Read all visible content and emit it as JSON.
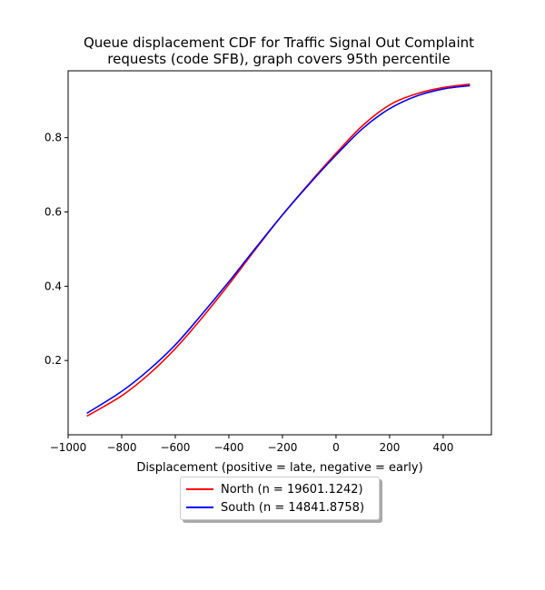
{
  "chart_data": {
    "type": "line",
    "title_line1": "Queue displacement CDF for Traffic Signal Out Complaint",
    "title_line2": "requests (code SFB), graph covers 95th percentile",
    "xlabel": "Displacement (positive = late, negative = early)",
    "ylabel": "",
    "xlim": [
      -1000,
      580
    ],
    "ylim": [
      0.0,
      0.98
    ],
    "xticks": [
      -1000,
      -800,
      -600,
      -400,
      -200,
      0,
      200,
      400
    ],
    "xtick_labels": [
      "−1000",
      "−800",
      "−600",
      "−400",
      "−200",
      "0",
      "200",
      "400"
    ],
    "yticks": [
      0.2,
      0.4,
      0.6,
      0.8
    ],
    "ytick_labels": [
      "0.2",
      "0.4",
      "0.6",
      "0.8"
    ],
    "grid": false,
    "legend_position": "below",
    "series": [
      {
        "name": "North (n = 19601.1242)",
        "color": "#ff0000",
        "x": [
          -930,
          -800,
          -700,
          -600,
          -500,
          -400,
          -300,
          -200,
          -100,
          0,
          100,
          200,
          300,
          400,
          500
        ],
        "y": [
          0.05,
          0.105,
          0.162,
          0.232,
          0.315,
          0.405,
          0.5,
          0.592,
          0.677,
          0.758,
          0.833,
          0.888,
          0.918,
          0.935,
          0.944
        ]
      },
      {
        "name": "South (n = 14841.8758)",
        "color": "#0000ff",
        "x": [
          -930,
          -800,
          -700,
          -600,
          -500,
          -400,
          -300,
          -200,
          -100,
          0,
          100,
          200,
          300,
          400,
          500
        ],
        "y": [
          0.058,
          0.117,
          0.174,
          0.242,
          0.325,
          0.412,
          0.503,
          0.592,
          0.675,
          0.753,
          0.825,
          0.878,
          0.912,
          0.931,
          0.94
        ]
      }
    ]
  }
}
